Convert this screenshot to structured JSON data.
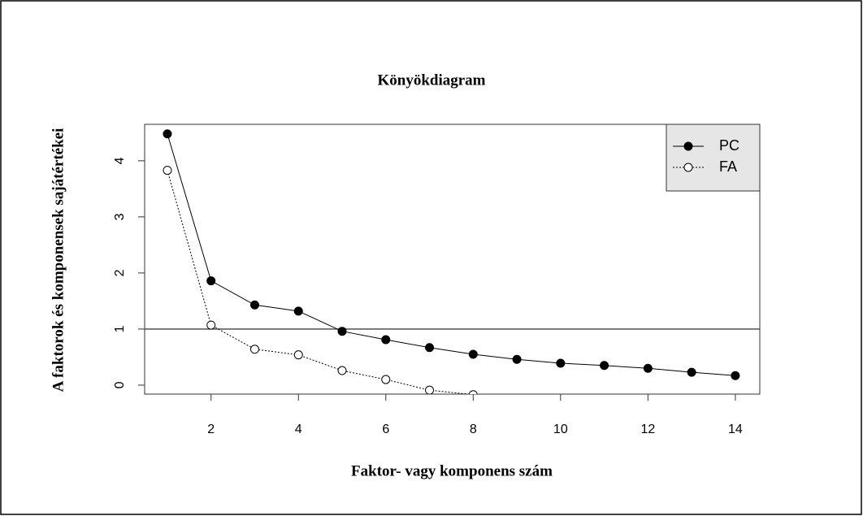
{
  "chart_data": {
    "type": "line",
    "title": "Könyökdiagram",
    "x_label": "Faktor- vagy komponens szám",
    "y_label": "A faktorok és komponensek sajátértékei",
    "x": [
      1,
      2,
      3,
      4,
      5,
      6,
      7,
      8,
      9,
      10,
      11,
      12,
      13,
      14
    ],
    "series": [
      {
        "name": "PC",
        "color": "#000000",
        "marker": "filled",
        "linestyle": "solid",
        "values": [
          4.48,
          1.86,
          1.43,
          1.32,
          0.96,
          0.81,
          0.67,
          0.55,
          0.46,
          0.39,
          0.35,
          0.3,
          0.23,
          0.17
        ]
      },
      {
        "name": "FA",
        "color": "#000000",
        "marker": "open",
        "linestyle": "dotted",
        "values": [
          3.83,
          1.07,
          0.64,
          0.54,
          0.26,
          0.1,
          -0.09,
          -0.17,
          null,
          null,
          null,
          null,
          null,
          null
        ]
      }
    ],
    "hline": 1,
    "xlim": [
      0.48,
      14.56
    ],
    "xticks": [
      2,
      4,
      6,
      8,
      10,
      12,
      14
    ],
    "ylim": [
      -0.16,
      4.65
    ],
    "yticks": [
      0,
      1,
      2,
      3,
      4
    ],
    "legend": "top-right",
    "legend_background": "#e6e6e6",
    "legend_text_color": "#2e9e2e"
  }
}
